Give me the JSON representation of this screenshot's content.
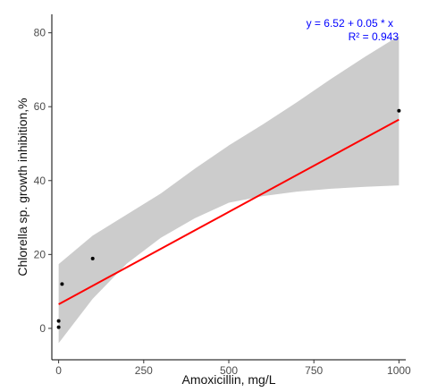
{
  "chart_data": {
    "type": "scatter",
    "xlabel": "Amoxicillin, mg/L",
    "ylabel": "Chlorella sp. growth inhibition,%",
    "xlim": [
      -20,
      1020
    ],
    "ylim": [
      -8.5,
      85
    ],
    "xticks": [
      0,
      250,
      500,
      750,
      1000
    ],
    "yticks": [
      0,
      20,
      40,
      60,
      80
    ],
    "xtick_labels": [
      "0",
      "250",
      "500",
      "750",
      "1000"
    ],
    "ytick_labels": [
      "0",
      "20",
      "40",
      "60",
      "80"
    ],
    "grid": false,
    "points": [
      {
        "x": 0,
        "y": 0.3
      },
      {
        "x": 0,
        "y": 2.0
      },
      {
        "x": 10,
        "y": 12.0
      },
      {
        "x": 100,
        "y": 18.9
      },
      {
        "x": 1000,
        "y": 58.9
      }
    ],
    "regression": {
      "intercept": 6.52,
      "slope": 0.05,
      "x_range": [
        0,
        1000
      ],
      "equation_label": "y =  6.52  +  0.05  * x",
      "r2_label": "R² =  0.943",
      "line_color": "#ff0000",
      "label_color": "#0000ff"
    },
    "confidence_band": {
      "color": "#cccccc",
      "x": [
        0,
        100,
        200,
        300,
        400,
        500,
        600,
        700,
        800,
        900,
        1000
      ],
      "lower": [
        -4.0,
        8.0,
        17.5,
        24.5,
        29.8,
        34.0,
        35.8,
        37.0,
        37.8,
        38.3,
        38.7
      ],
      "upper": [
        17.4,
        25.1,
        30.8,
        36.5,
        43.2,
        49.5,
        55.2,
        61.2,
        67.5,
        73.5,
        79.2
      ]
    }
  }
}
